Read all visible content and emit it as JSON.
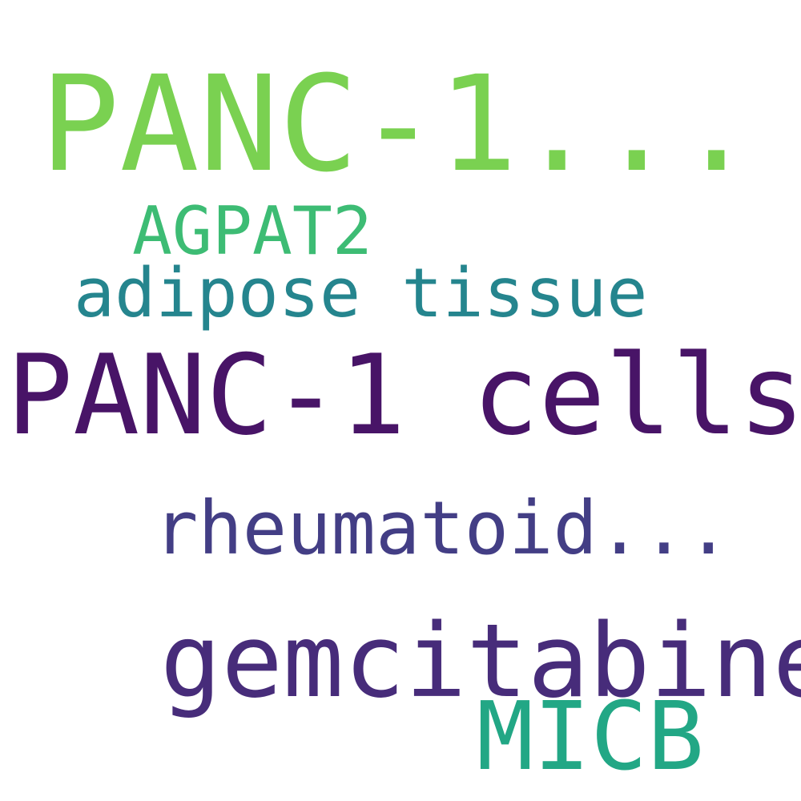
{
  "word_cloud": {
    "words": [
      {
        "text": "PANC-1...",
        "color": "#7ad151"
      },
      {
        "text": "AGPAT2",
        "color": "#3dbc74"
      },
      {
        "text": "adipose tissue",
        "color": "#25858e"
      },
      {
        "text": "PANC-1 cells",
        "color": "#481467"
      },
      {
        "text": "rheumatoid...",
        "color": "#433e85"
      },
      {
        "text": "gemcitabine",
        "color": "#472c7a"
      },
      {
        "text": "MICB",
        "color": "#22a785"
      }
    ]
  }
}
